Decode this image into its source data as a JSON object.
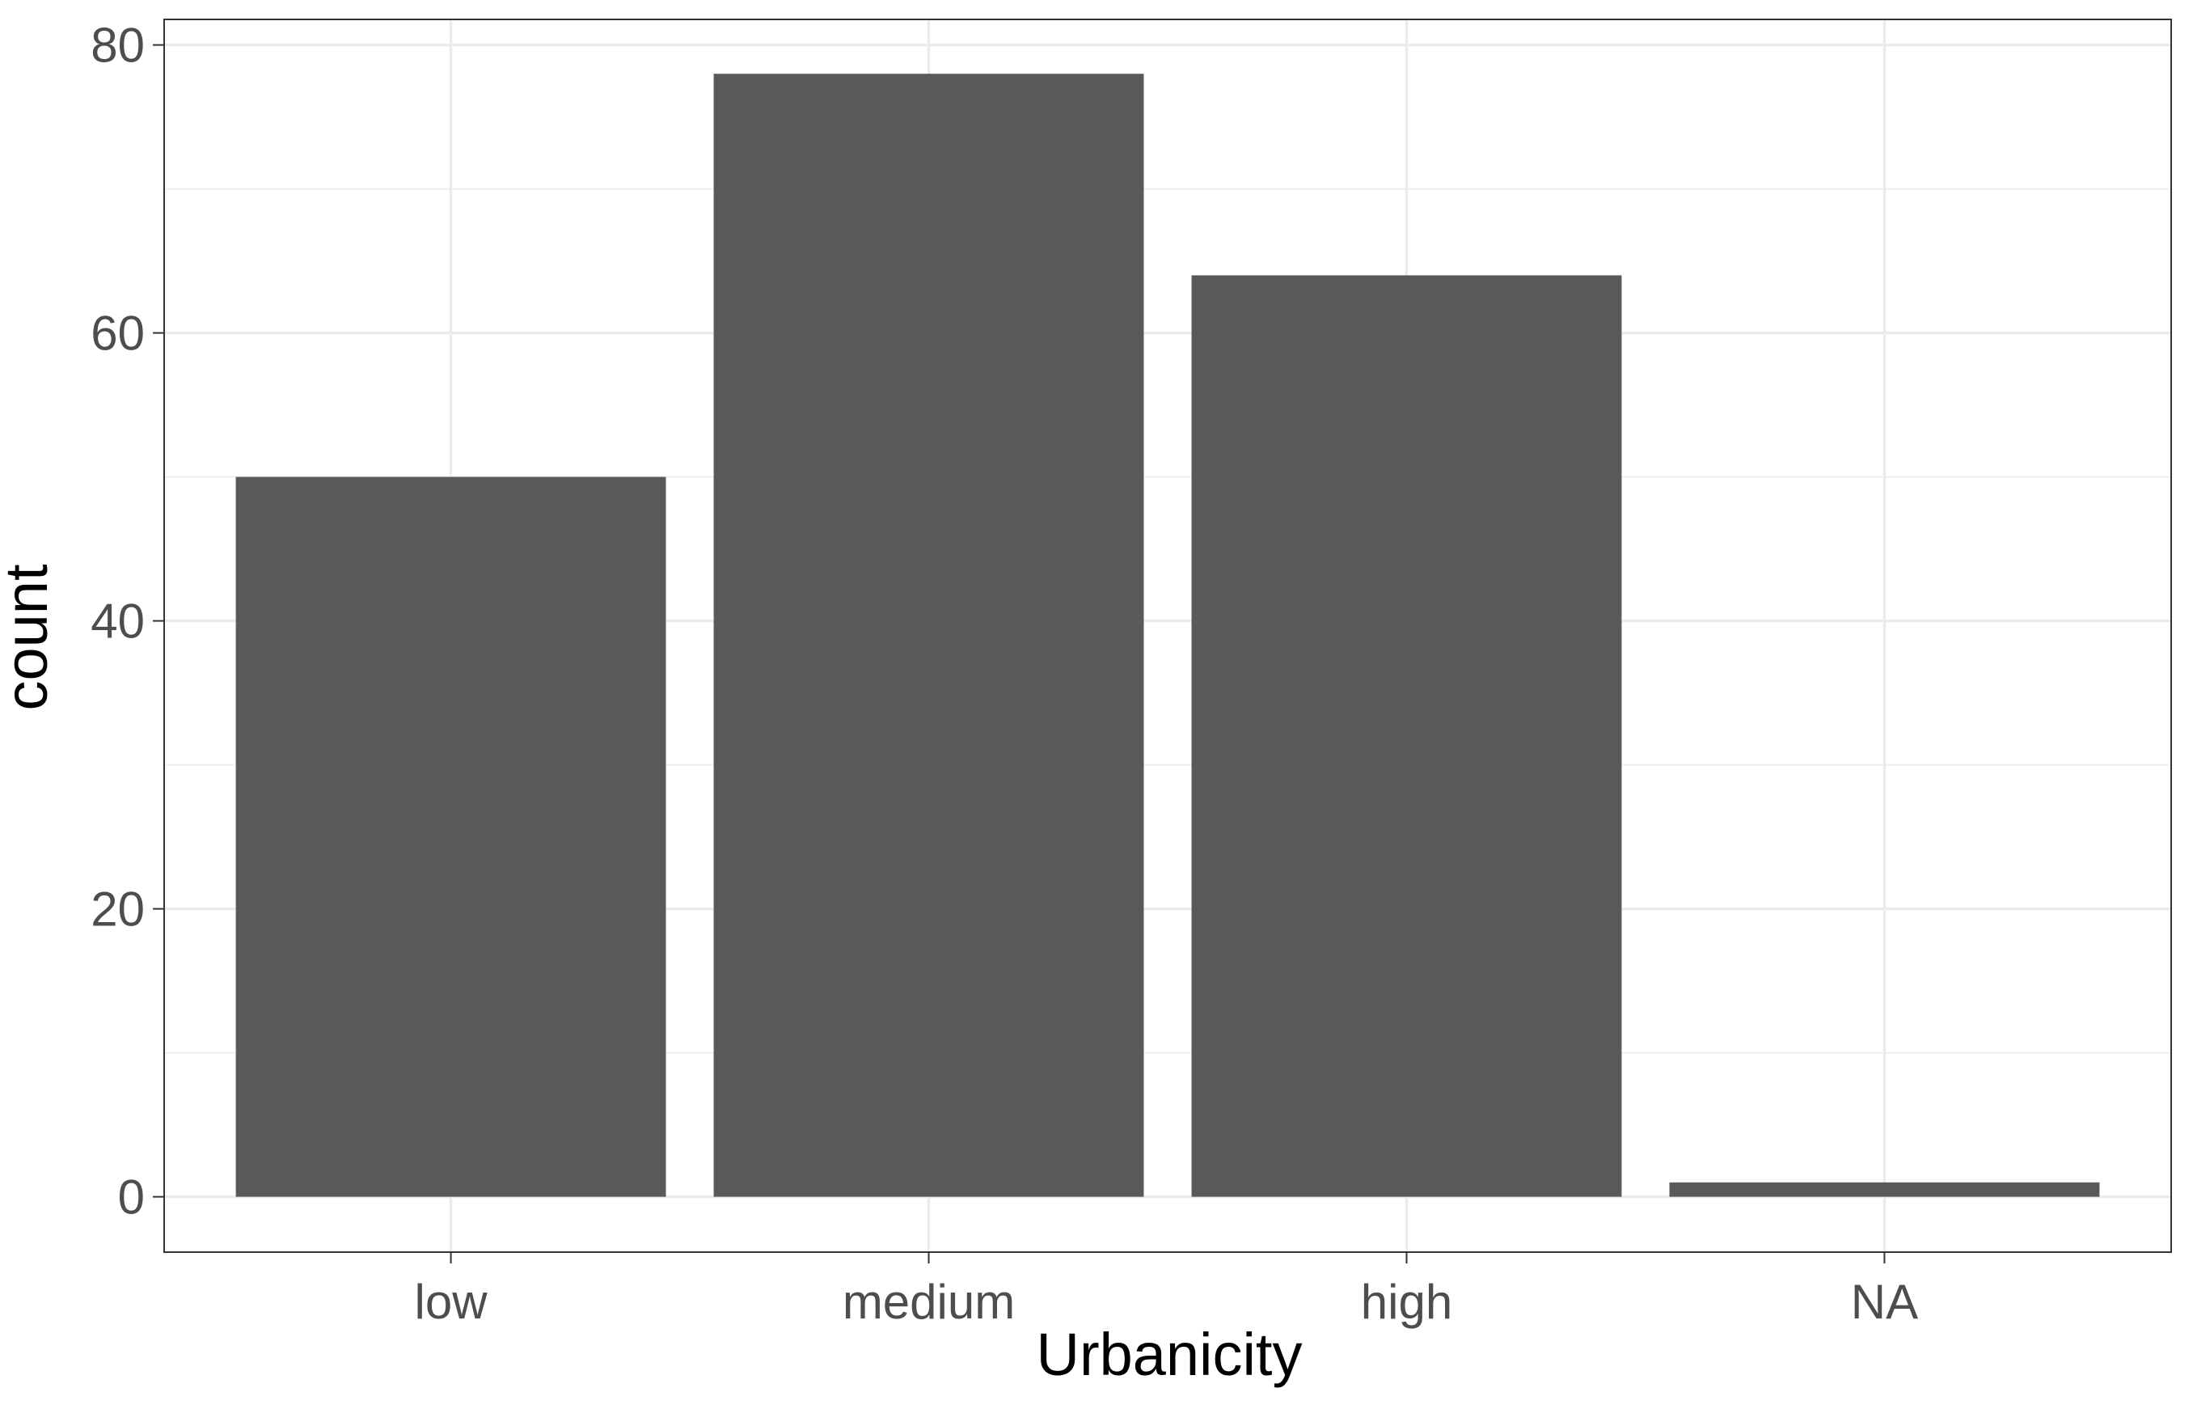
{
  "chart_data": {
    "type": "bar",
    "categories": [
      "low",
      "medium",
      "high",
      "NA"
    ],
    "values": [
      50,
      78,
      64,
      1
    ],
    "title": "",
    "xlabel": "Urbanicity",
    "ylabel": "count",
    "ylim": [
      0,
      82
    ],
    "yticks": [
      0,
      20,
      40,
      60,
      80
    ],
    "grid": true,
    "legend": "none",
    "colors": {
      "bar": "#595959",
      "grid": "#ebebeb",
      "panel_border": "#333333",
      "tick": "#333333",
      "background": "#ffffff"
    }
  }
}
